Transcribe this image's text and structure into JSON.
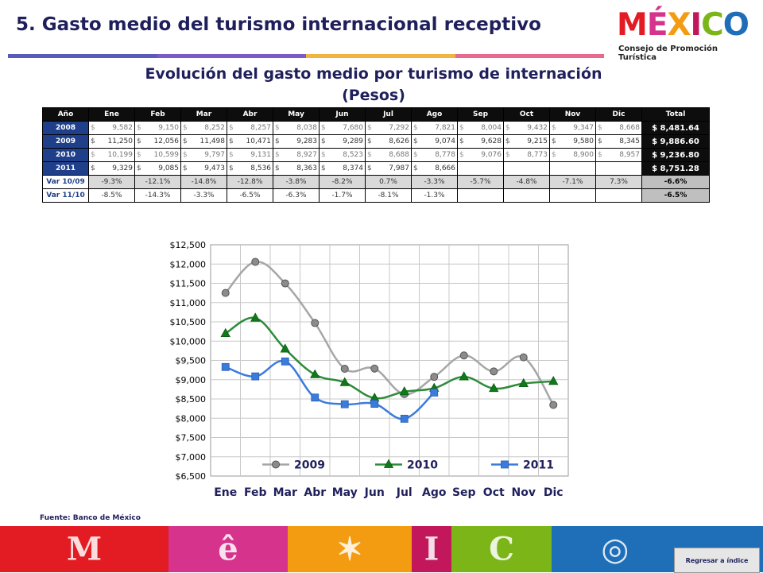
{
  "page_title": "5. Gasto medio del turismo internacional receptivo",
  "logo": {
    "word": "MÉXICO",
    "subtitle": "Consejo de Promoción Turística"
  },
  "chart_title_line1": "Evolución del gasto medio por turismo de internación",
  "chart_title_line2": "(Pesos)",
  "table": {
    "headers": [
      "Año",
      "Ene",
      "Feb",
      "Mar",
      "Abr",
      "May",
      "Jun",
      "Jul",
      "Ago",
      "Sep",
      "Oct",
      "Nov",
      "Dic",
      "Total"
    ],
    "currency_symbol": "$",
    "rows": [
      {
        "year": "2008",
        "gray": true,
        "values": [
          "9,582",
          "9,150",
          "8,252",
          "8,257",
          "8,038",
          "7,680",
          "7,292",
          "7,821",
          "8,004",
          "9,432",
          "9,347",
          "8,668"
        ],
        "total": "$ 8,481.64"
      },
      {
        "year": "2009",
        "gray": false,
        "values": [
          "11,250",
          "12,056",
          "11,498",
          "10,471",
          "9,283",
          "9,289",
          "8,626",
          "9,074",
          "9,628",
          "9,215",
          "9,580",
          "8,345"
        ],
        "total": "$ 9,886.60"
      },
      {
        "year": "2010",
        "gray": true,
        "values": [
          "10,199",
          "10,599",
          "9,797",
          "9,131",
          "8,927",
          "8,523",
          "8,688",
          "8,778",
          "9,076",
          "8,773",
          "8,900",
          "8,957"
        ],
        "total": "$ 9,236.80"
      },
      {
        "year": "2011",
        "gray": false,
        "values": [
          "9,329",
          "9,085",
          "9,473",
          "8,536",
          "8,363",
          "8,374",
          "7,987",
          "8,666",
          "",
          "",
          "",
          ""
        ],
        "total": "$ 8,751.28"
      }
    ],
    "var_rows": [
      {
        "label": "Var 10/09",
        "values": [
          "-9.3%",
          "-12.1%",
          "-14.8%",
          "-12.8%",
          "-3.8%",
          "-8.2%",
          "0.7%",
          "-3.3%",
          "-5.7%",
          "-4.8%",
          "-7.1%",
          "7.3%"
        ],
        "total": "-6.6%"
      },
      {
        "label": "Var 11/10",
        "values": [
          "-8.5%",
          "-14.3%",
          "-3.3%",
          "-6.5%",
          "-6.3%",
          "-1.7%",
          "-8.1%",
          "-1.3%",
          "",
          "",
          "",
          ""
        ],
        "total": "-6.5%"
      }
    ]
  },
  "chart_data": {
    "type": "line",
    "categories": [
      "Ene",
      "Feb",
      "Mar",
      "Abr",
      "May",
      "Jun",
      "Jul",
      "Ago",
      "Sep",
      "Oct",
      "Nov",
      "Dic"
    ],
    "series": [
      {
        "name": "2009",
        "color": "#a6a6a6",
        "marker": "circle",
        "marker_color": "#8c8c8c",
        "values": [
          11250,
          12056,
          11498,
          10471,
          9283,
          9289,
          8626,
          9074,
          9628,
          9215,
          9580,
          8345
        ]
      },
      {
        "name": "2010",
        "color": "#2e8b3a",
        "marker": "triangle",
        "marker_color": "#0f7a1a",
        "values": [
          10199,
          10599,
          9797,
          9131,
          8927,
          8523,
          8688,
          8778,
          9076,
          8773,
          8900,
          8957
        ]
      },
      {
        "name": "2011",
        "color": "#3a7bdc",
        "marker": "square",
        "marker_color": "#3a7bdc",
        "values": [
          9329,
          9085,
          9473,
          8536,
          8363,
          8374,
          7987,
          8666,
          null,
          null,
          null,
          null
        ]
      }
    ],
    "ylim": [
      6500,
      12500
    ],
    "yticks": [
      "$6,500",
      "$7,000",
      "$7,500",
      "$8,000",
      "$8,500",
      "$9,000",
      "$9,500",
      "$10,000",
      "$10,500",
      "$11,000",
      "$11,500",
      "$12,000",
      "$12,500"
    ],
    "grid": true,
    "legend_position": "bottom-inside"
  },
  "source_note": "Fuente: Banco de México",
  "footer_colors": [
    "#e31b23",
    "#d6338c",
    "#f39c12",
    "#c2185b",
    "#7cb518",
    "#1e6fb8"
  ],
  "back_button": "Regresar a índice"
}
